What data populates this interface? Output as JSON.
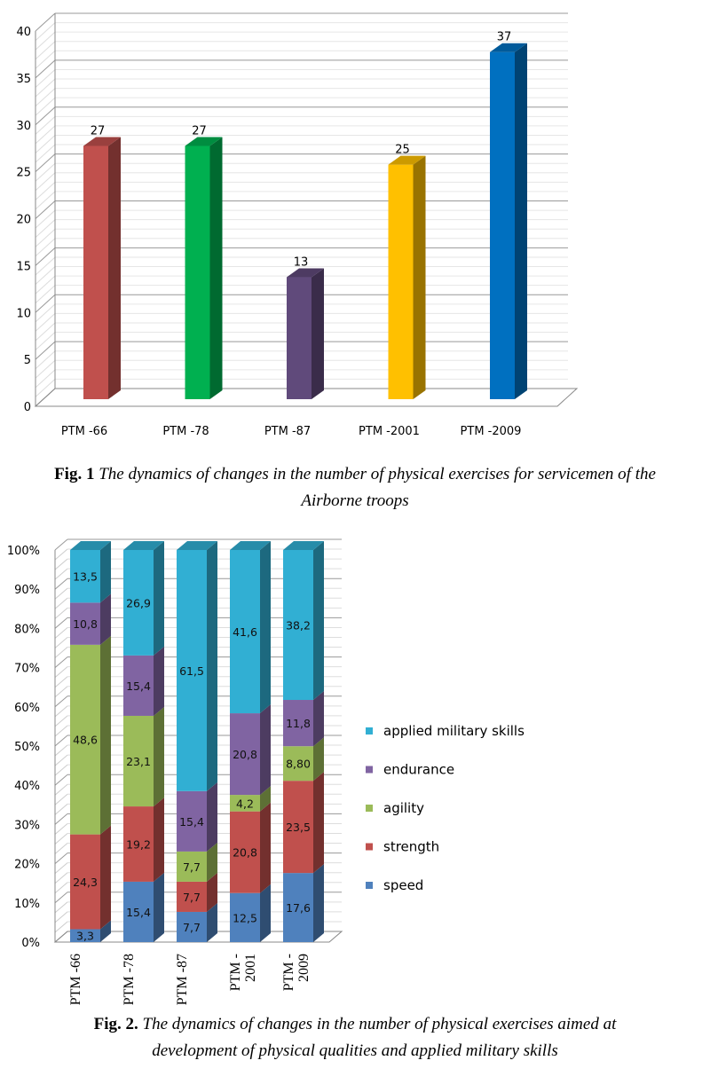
{
  "chart_data": [
    {
      "type": "bar",
      "title": "",
      "xlabel": "",
      "ylabel": "",
      "ylim": [
        0,
        40
      ],
      "yticks": [
        "0",
        "5",
        "10",
        "15",
        "20",
        "25",
        "30",
        "35",
        "40"
      ],
      "categories": [
        "PTM -66",
        "PTM -78",
        "PTM -87",
        "PTM -2001",
        "PTM -2009"
      ],
      "values": [
        27,
        27,
        13,
        25,
        37
      ],
      "colors": [
        "#C0504D",
        "#00B050",
        "#604A7B",
        "#FFC000",
        "#0070C0"
      ]
    },
    {
      "type": "bar",
      "stacked": "percent",
      "title": "",
      "ylim": [
        0,
        100
      ],
      "yticks": [
        "0%",
        "10%",
        "20%",
        "30%",
        "40%",
        "50%",
        "60%",
        "70%",
        "80%",
        "90%",
        "100%"
      ],
      "categories": [
        [
          "PTM -66"
        ],
        [
          "PTM -78"
        ],
        [
          "PTM -87"
        ],
        [
          "PTM -",
          "2001"
        ],
        [
          "PTM -",
          "2009"
        ]
      ],
      "legend_position": "right",
      "series": [
        {
          "name": "speed",
          "color": "#4F81BD",
          "values": [
            3.3,
            15.4,
            7.7,
            12.5,
            17.6
          ],
          "labels": [
            "3,3",
            "15,4",
            "7,7",
            "12,5",
            "17,6"
          ]
        },
        {
          "name": "strength",
          "color": "#C0504D",
          "values": [
            24.3,
            19.2,
            7.7,
            20.8,
            23.5
          ],
          "labels": [
            "24,3",
            "19,2",
            "7,7",
            "20,8",
            "23,5"
          ]
        },
        {
          "name": "agility",
          "color": "#9BBB59",
          "values": [
            48.6,
            23.1,
            7.7,
            4.2,
            8.8
          ],
          "labels": [
            "48,6",
            "23,1",
            "7,7",
            "4,2",
            "8,80"
          ]
        },
        {
          "name": "endurance",
          "color": "#8064A2",
          "values": [
            10.8,
            15.4,
            15.4,
            20.8,
            11.8
          ],
          "labels": [
            "10,8",
            "15,4",
            "15,4",
            "20,8",
            "11,8"
          ]
        },
        {
          "name": "applied military skills",
          "color": "#31AFD3",
          "values": [
            13.5,
            26.9,
            61.5,
            41.6,
            38.2
          ],
          "labels": [
            "13,5",
            "26,9",
            "61,5",
            "41,6",
            "38,2"
          ]
        }
      ]
    }
  ],
  "captions": {
    "fig1_label": "Fig. 1",
    "fig1_text": "The dynamics of changes in the number of physical exercises for servicemen of the Airborne troops",
    "fig2_label": "Fig. 2.",
    "fig2_text": "The dynamics of changes in the number of physical exercises aimed at development of physical qualities and applied military skills"
  }
}
